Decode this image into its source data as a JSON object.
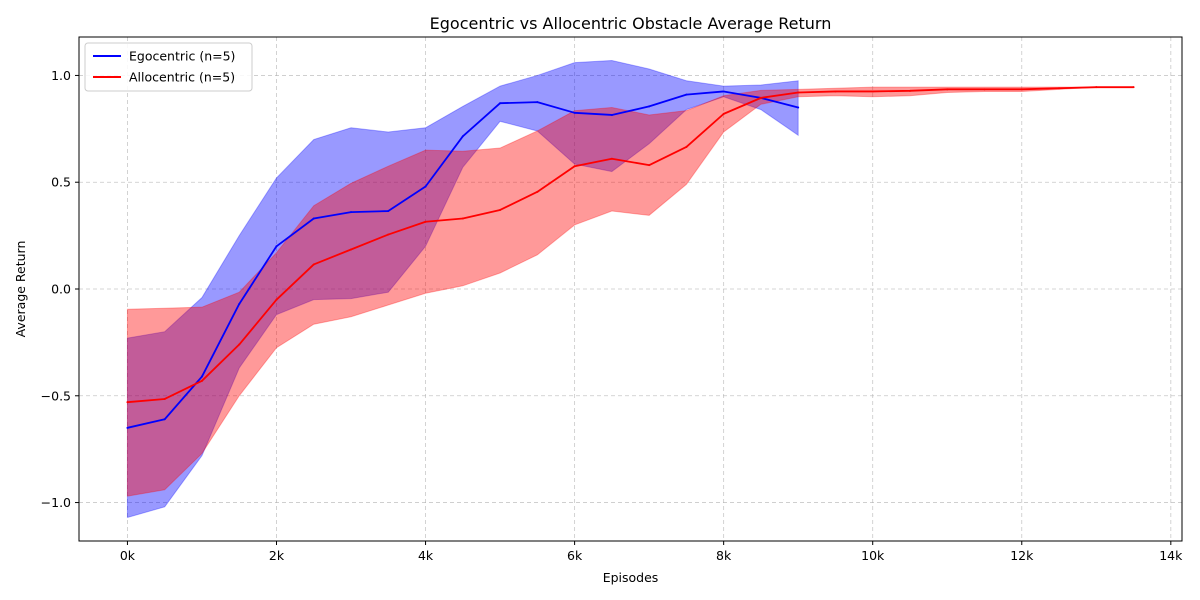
{
  "chart_data": {
    "type": "line",
    "title": "Egocentric vs Allocentric Obstacle Average Return",
    "xlabel": "Episodes",
    "ylabel": "Average Return",
    "xlim": [
      -650,
      14150
    ],
    "ylim": [
      -1.18,
      1.18
    ],
    "x_ticks": [
      0,
      2000,
      4000,
      6000,
      8000,
      10000,
      12000,
      14000
    ],
    "x_tick_labels": [
      "0k",
      "2k",
      "4k",
      "6k",
      "8k",
      "10k",
      "12k",
      "14k"
    ],
    "y_ticks": [
      -1.0,
      -0.5,
      0.0,
      0.5,
      1.0
    ],
    "y_tick_labels": [
      "−1.0",
      "−0.5",
      "0.0",
      "0.5",
      "1.0"
    ],
    "grid": true,
    "legend_position": "top-left",
    "series": [
      {
        "name": "Egocentric (n=5)",
        "color": "#0000ff",
        "fill_color": "#0000ff",
        "fill_opacity": 0.4,
        "x": [
          0,
          500,
          1000,
          1500,
          2000,
          2500,
          3000,
          3500,
          4000,
          4500,
          5000,
          5500,
          6000,
          6500,
          7000,
          7500,
          8000,
          8500,
          9000
        ],
        "y": [
          -0.65,
          -0.61,
          -0.41,
          -0.07,
          0.2,
          0.33,
          0.36,
          0.365,
          0.48,
          0.715,
          0.87,
          0.875,
          0.825,
          0.815,
          0.855,
          0.91,
          0.925,
          0.895,
          0.85
        ],
        "lower": [
          -1.07,
          -1.02,
          -0.78,
          -0.37,
          -0.12,
          -0.05,
          -0.045,
          -0.015,
          0.2,
          0.57,
          0.785,
          0.74,
          0.585,
          0.55,
          0.68,
          0.84,
          0.9,
          0.84,
          0.72
        ],
        "upper": [
          -0.23,
          -0.2,
          -0.04,
          0.25,
          0.52,
          0.7,
          0.755,
          0.735,
          0.755,
          0.855,
          0.95,
          1.0,
          1.06,
          1.07,
          1.03,
          0.975,
          0.95,
          0.955,
          0.975
        ]
      },
      {
        "name": "Allocentric (n=5)",
        "color": "#ff0000",
        "fill_color": "#ff0000",
        "fill_opacity": 0.4,
        "x": [
          0,
          500,
          1000,
          1500,
          2000,
          2500,
          3000,
          3500,
          4000,
          4500,
          5000,
          5500,
          6000,
          6500,
          7000,
          7500,
          8000,
          8500,
          9000,
          9500,
          10000,
          10500,
          11000,
          11500,
          12000,
          12500,
          13000,
          13500
        ],
        "y": [
          -0.53,
          -0.515,
          -0.43,
          -0.26,
          -0.05,
          0.115,
          0.185,
          0.255,
          0.315,
          0.33,
          0.37,
          0.455,
          0.575,
          0.61,
          0.58,
          0.665,
          0.82,
          0.895,
          0.92,
          0.925,
          0.925,
          0.928,
          0.935,
          0.935,
          0.935,
          0.94,
          0.945,
          0.945
        ],
        "lower": [
          -0.97,
          -0.94,
          -0.77,
          -0.5,
          -0.275,
          -0.165,
          -0.13,
          -0.075,
          -0.02,
          0.015,
          0.075,
          0.16,
          0.3,
          0.365,
          0.345,
          0.49,
          0.735,
          0.865,
          0.9,
          0.905,
          0.9,
          0.905,
          0.92,
          0.925,
          0.925,
          0.935,
          0.945,
          0.945
        ],
        "upper": [
          -0.095,
          -0.09,
          -0.085,
          -0.015,
          0.17,
          0.39,
          0.495,
          0.575,
          0.65,
          0.645,
          0.66,
          0.74,
          0.835,
          0.85,
          0.815,
          0.835,
          0.905,
          0.93,
          0.935,
          0.94,
          0.945,
          0.945,
          0.945,
          0.945,
          0.945,
          0.945,
          0.945,
          0.945
        ]
      }
    ]
  }
}
